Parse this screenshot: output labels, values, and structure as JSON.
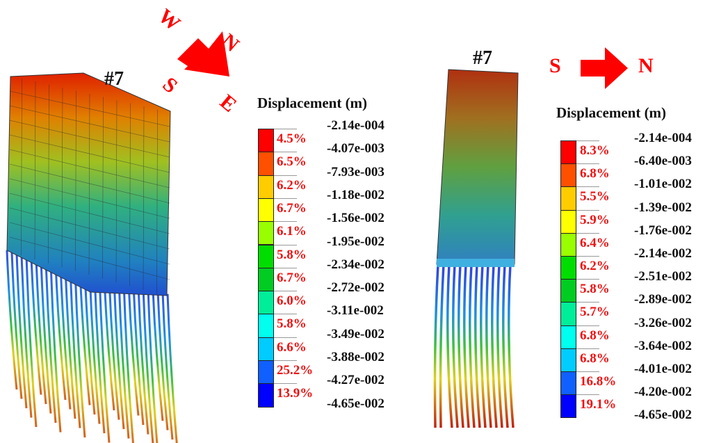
{
  "left_panel": {
    "model_label": "#7",
    "compass": {
      "letters": [
        "W",
        "N",
        "S",
        "E"
      ],
      "color": "#ff0000"
    },
    "legend": {
      "title": "Displacement (m)",
      "colors": [
        "#ff0000",
        "#ff5000",
        "#ffcc00",
        "#ffff00",
        "#99ff00",
        "#00dd00",
        "#00cc22",
        "#00ee99",
        "#00ffee",
        "#00ccff",
        "#1060ff",
        "#0000ff"
      ],
      "percentages": [
        "4.5%",
        "6.5%",
        "6.2%",
        "6.7%",
        "6.1%",
        "5.8%",
        "6.7%",
        "6.0%",
        "5.8%",
        "6.6%",
        "25.2%",
        "13.9%"
      ],
      "values": [
        "-2.14e-004",
        "-4.07e-003",
        "-7.93e-003",
        "-1.18e-002",
        "-1.56e-002",
        "-1.95e-002",
        "-2.34e-002",
        "-2.72e-002",
        "-3.11e-002",
        "-3.49e-002",
        "-3.88e-002",
        "-4.27e-002",
        "-4.65e-002"
      ]
    }
  },
  "right_panel": {
    "model_label": "#7",
    "direction": {
      "from": "S",
      "to": "N",
      "color": "#ff0000"
    },
    "legend": {
      "title": "Displacement (m)",
      "colors": [
        "#ff0000",
        "#ff5000",
        "#ffcc00",
        "#ffff00",
        "#99ff00",
        "#00dd00",
        "#00cc22",
        "#00ee99",
        "#00ffee",
        "#00ccff",
        "#1060ff",
        "#0000ff"
      ],
      "percentages": [
        "8.3%",
        "6.8%",
        "5.5%",
        "5.9%",
        "6.4%",
        "6.2%",
        "5.8%",
        "5.7%",
        "6.8%",
        "6.8%",
        "16.8%",
        "19.1%"
      ],
      "values": [
        "-2.14e-004",
        "-6.40e-003",
        "-1.01e-002",
        "-1.39e-002",
        "-1.76e-002",
        "-2.14e-002",
        "-2.51e-002",
        "-2.89e-002",
        "-3.26e-002",
        "-3.64e-002",
        "-4.01e-002",
        "-4.20e-002",
        "-4.65e-002"
      ]
    }
  }
}
